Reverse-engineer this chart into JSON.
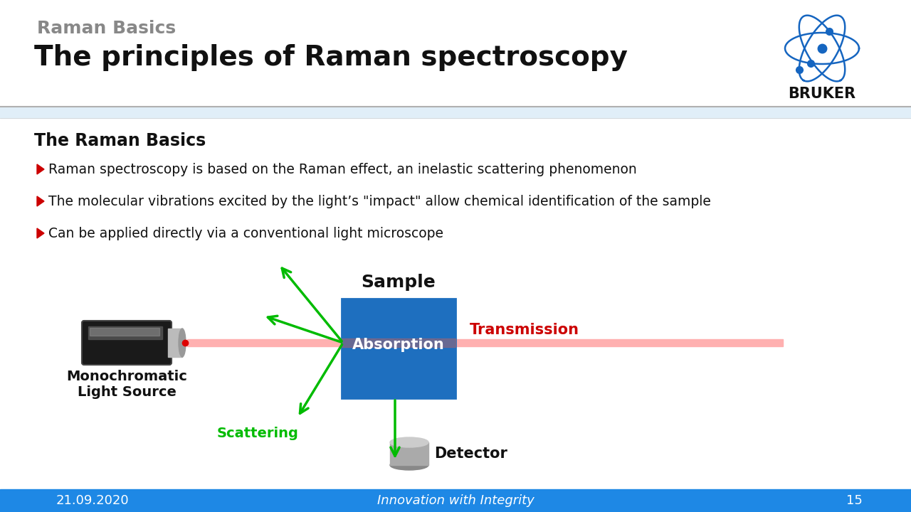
{
  "title_gray": "Raman Basics",
  "title_black": "The principles of Raman spectroscopy",
  "section_title": "The Raman Basics",
  "bullets": [
    "Raman spectroscopy is based on the Raman effect, an inelastic scattering phenomenon",
    "The molecular vibrations excited by the light’s \"impact\" allow chemical identification of the sample",
    "Can be applied directly via a conventional light microscope"
  ],
  "diagram": {
    "sample_label": "Sample",
    "absorption_label": "Absorption",
    "transmission_label": "Transmission",
    "source_label": "Monochromatic\nLight Source",
    "scattering_label": "Scattering",
    "detector_label": "Detector",
    "sample_color": "#1E6FBF",
    "sample_text_color": "#FFFFFF",
    "transmission_color": "#CC0000",
    "scattering_color": "#00BB00",
    "beam_color": "#FFB0B0",
    "beam_dark": "#CC6666"
  },
  "footer_date": "21.09.2020",
  "footer_center": "Innovation with Integrity",
  "footer_page": "15",
  "footer_bg": "#1E88E5",
  "bullet_arrow_color": "#CC0000",
  "background_color": "#FFFFFF",
  "separator_color": "#C0C0C0",
  "band_color": "#E0EEF8"
}
